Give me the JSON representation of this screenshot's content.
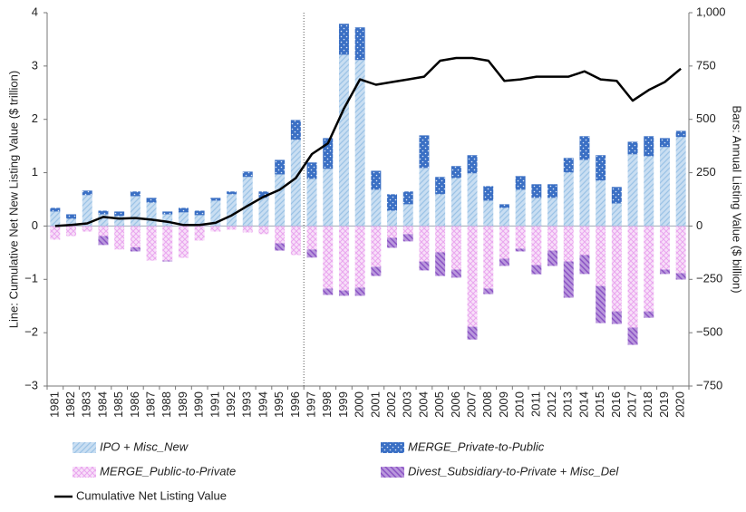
{
  "chart_data": {
    "type": "bar",
    "categories": [
      "1981",
      "1982",
      "1983",
      "1984",
      "1985",
      "1986",
      "1987",
      "1988",
      "1989",
      "1990",
      "1991",
      "1992",
      "1993",
      "1994",
      "1995",
      "1996",
      "1997",
      "1998",
      "1999",
      "2000",
      "2001",
      "2002",
      "2003",
      "2004",
      "2005",
      "2006",
      "2007",
      "2008",
      "2009",
      "2010",
      "2011",
      "2012",
      "2013",
      "2014",
      "2015",
      "2016",
      "2017",
      "2018",
      "2019",
      "2020"
    ],
    "y_label": "Line: Cumulative Net New Listing Value ($ trillion)",
    "y2_label": "Bars: Annual Listing Value ($ billion)",
    "ylim": [
      -3,
      4
    ],
    "yticks": [
      {
        "value": -3,
        "label": "−3"
      },
      {
        "value": -2,
        "label": "−2"
      },
      {
        "value": -1,
        "label": "−1"
      },
      0,
      1,
      2,
      3,
      4
    ],
    "y2lim": [
      -750,
      1000
    ],
    "y2ticks": [
      {
        "value": -750,
        "label": "−750"
      },
      {
        "value": -500,
        "label": "−500"
      },
      {
        "value": -250,
        "label": "−250"
      },
      0,
      250,
      500,
      750,
      {
        "value": 1000,
        "label": "1,000"
      }
    ],
    "series": [
      {
        "name": "IPO + Misc_New",
        "color": "#9cc3e6",
        "axis": "y2",
        "values": [
          68,
          34,
          145,
          55,
          47,
          140,
          110,
          55,
          64,
          51,
          119,
          149,
          230,
          132,
          242,
          404,
          221,
          268,
          803,
          778,
          170,
          72,
          102,
          272,
          149,
          225,
          247,
          119,
          85,
          170,
          132,
          132,
          251,
          310,
          213,
          106,
          336,
          327,
          370,
          417
        ]
      },
      {
        "name": "MERGE_Private-to-Public",
        "color": "#3a6fc4",
        "axis": "y2",
        "values": [
          17,
          21,
          21,
          17,
          21,
          22,
          22,
          13,
          21,
          21,
          13,
          13,
          25,
          30,
          68,
          93,
          77,
          144,
          145,
          153,
          89,
          77,
          60,
          153,
          81,
          56,
          85,
          68,
          17,
          64,
          64,
          64,
          68,
          111,
          119,
          77,
          59,
          94,
          42,
          29
        ]
      },
      {
        "name": "MERGE_Public-to-Private",
        "color": "#e9a6ee",
        "axis": "y2",
        "values": [
          -64,
          -47,
          -26,
          -47,
          -110,
          -100,
          -162,
          -162,
          -149,
          -68,
          -26,
          -17,
          -30,
          -38,
          -81,
          -136,
          -110,
          -293,
          -302,
          -289,
          -191,
          -55,
          -38,
          -166,
          -123,
          -204,
          -472,
          -293,
          -153,
          -106,
          -183,
          -115,
          -166,
          -136,
          -281,
          -400,
          -476,
          -400,
          -204,
          -221
        ]
      },
      {
        "name": "Divest_Subsidiary-to-Private + Misc_Del",
        "color": "#8a52c4",
        "axis": "y2",
        "values": [
          0,
          0,
          0,
          -42,
          0,
          -19,
          0,
          -4,
          0,
          0,
          0,
          0,
          0,
          0,
          -34,
          0,
          -38,
          -30,
          -25,
          -38,
          -43,
          -47,
          -34,
          -42,
          -111,
          -38,
          -60,
          -26,
          -34,
          -13,
          -43,
          -72,
          -170,
          -89,
          -174,
          -59,
          -81,
          -30,
          -21,
          -30
        ]
      },
      {
        "name": "Cumulative Net Listing Value",
        "color": "#000000",
        "type": "line",
        "values": [
          0,
          0.02,
          0.05,
          0.17,
          0.14,
          0.15,
          0.12,
          0.08,
          0.02,
          0.02,
          0.06,
          0.2,
          0.38,
          0.55,
          0.68,
          0.9,
          1.35,
          1.55,
          2.2,
          2.75,
          2.65,
          2.7,
          2.75,
          2.8,
          3.1,
          3.15,
          3.15,
          3.1,
          2.72,
          2.75,
          2.8,
          2.8,
          2.8,
          2.9,
          2.75,
          2.72,
          2.35,
          2.55,
          2.7,
          2.95
        ]
      }
    ]
  }
}
